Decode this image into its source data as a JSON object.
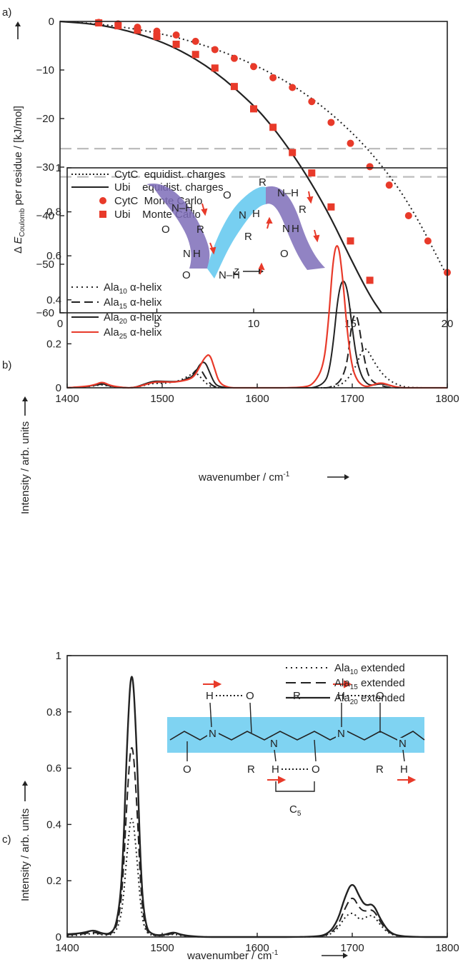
{
  "panels": [
    {
      "letter": "a)",
      "xlabel": "z",
      "ylabel_prefix": "Δ ",
      "ylabel_main": "E",
      "ylabel_sub": "Coulomb",
      "ylabel_suffix": " per residue / [kJ/mol]",
      "legend": [
        {
          "label": "CytC  equidist. charges",
          "style": "dotted",
          "marker": "none"
        },
        {
          "label": "Ubi    equidist. charges",
          "style": "solid",
          "marker": "none"
        },
        {
          "label": "CytC  Monte Carlo",
          "style": "none",
          "marker": "circle"
        },
        {
          "label": "Ubi    Monte Carlo",
          "style": "none",
          "marker": "square"
        }
      ]
    },
    {
      "letter": "b)",
      "xlabel": "wavenumber / cm",
      "xlabel_sup": "-1",
      "ylabel": "Intensity / arb. units",
      "legend": [
        {
          "name": "Ala",
          "sub": "10",
          "rest": " α-helix",
          "style": "dotted",
          "color": "#222222"
        },
        {
          "name": "Ala",
          "sub": "15",
          "rest": " α-helix",
          "style": "dashed",
          "color": "#222222"
        },
        {
          "name": "Ala",
          "sub": "20",
          "rest": " α-helix",
          "style": "solid",
          "color": "#222222"
        },
        {
          "name": "Ala",
          "sub": "25",
          "rest": " α-helix",
          "style": "solid",
          "color": "#e83a2a"
        }
      ],
      "inset_labels": {
        "nh": "N–H",
        "o": "O",
        "r": "R",
        "n": "N",
        "h": "H"
      }
    },
    {
      "letter": "c)",
      "xlabel": "wavenumber / cm",
      "xlabel_sup": "-1",
      "ylabel": "Intensity / arb. units",
      "legend": [
        {
          "name": "Ala",
          "sub": "10",
          "rest": " extended",
          "style": "dotted"
        },
        {
          "name": "Ala",
          "sub": "15",
          "rest": " extended",
          "style": "dashed"
        },
        {
          "name": "Ala",
          "sub": "20",
          "rest": " extended",
          "style": "solid"
        }
      ],
      "inset_labels": {
        "h": "H",
        "o": "O",
        "n": "N",
        "r": "R",
        "c5": "C",
        "c5_sub": "5"
      }
    }
  ],
  "colors": {
    "red": "#e83a2a",
    "black": "#222222",
    "gray": "#bdbdbd",
    "blue_band": "#7fd3f2",
    "helix_purple": "#7e6db8"
  },
  "chart_data": [
    {
      "type": "scatter",
      "title": "",
      "xlabel": "z",
      "ylabel": "Δ E_Coulomb per residue / [kJ/mol]",
      "xlim": [
        0,
        20
      ],
      "ylim": [
        -60,
        0
      ],
      "xticks": [
        0,
        5,
        10,
        15,
        20
      ],
      "yticks": [
        0,
        -10,
        -20,
        -30,
        -40,
        -50,
        -60
      ],
      "reference_lines_y": [
        -26.2,
        -32
      ],
      "series": [
        {
          "name": "CytC  equidist. charges",
          "kind": "line",
          "style": "dotted",
          "color": "#222222",
          "x": [
            0,
            2,
            4,
            6,
            8,
            10,
            12,
            14,
            16,
            18,
            20
          ],
          "y": [
            0,
            -0.5,
            -1.6,
            -3.2,
            -5.6,
            -8.8,
            -13.0,
            -18.8,
            -26.5,
            -37.0,
            -52.5
          ]
        },
        {
          "name": "Ubi    equidist. charges",
          "kind": "line",
          "style": "solid",
          "color": "#222222",
          "x": [
            0,
            2,
            4,
            6,
            8,
            10,
            11,
            12,
            13,
            14,
            15,
            16,
            16.6
          ],
          "y": [
            0,
            -0.6,
            -2.4,
            -5.4,
            -10.2,
            -17.2,
            -21.8,
            -27.2,
            -33.4,
            -40.5,
            -48.8,
            -56.5,
            -60
          ]
        },
        {
          "name": "CytC  Monte Carlo",
          "kind": "points",
          "marker": "circle",
          "color": "#e83a2a",
          "x": [
            2,
            3,
            4,
            5,
            6,
            7,
            8,
            9,
            10,
            11,
            12,
            13,
            14,
            15,
            16,
            17,
            18,
            19,
            20
          ],
          "y": [
            -0.2,
            -0.5,
            -1.2,
            -2.0,
            -2.8,
            -4.1,
            -5.8,
            -7.6,
            -9.3,
            -11.6,
            -13.6,
            -16.5,
            -20.8,
            -25.1,
            -29.9,
            -33.7,
            -40.0,
            -45.2,
            -51.7
          ]
        },
        {
          "name": "Ubi    Monte Carlo",
          "kind": "points",
          "marker": "square",
          "color": "#e83a2a",
          "x": [
            2,
            3,
            4,
            5,
            6,
            7,
            8,
            9,
            10,
            11,
            12,
            13,
            14,
            15,
            16
          ],
          "y": [
            -0.3,
            -0.9,
            -1.8,
            -3.1,
            -4.7,
            -6.8,
            -9.6,
            -13.4,
            -18.0,
            -21.8,
            -27.0,
            -31.2,
            -38.2,
            -45.2,
            -53.3
          ]
        }
      ]
    },
    {
      "type": "line",
      "title": "",
      "xlabel": "wavenumber / cm-1",
      "ylabel": "Intensity / arb. units",
      "xlim": [
        1400,
        1800
      ],
      "ylim": [
        0,
        1
      ],
      "xticks": [
        1400,
        1500,
        1600,
        1700,
        1800
      ],
      "yticks": [
        0,
        0.2,
        0.4,
        0.6,
        0.8,
        1
      ],
      "x": [
        1400,
        1420,
        1430,
        1437,
        1445,
        1460,
        1470,
        1480,
        1490,
        1500,
        1510,
        1520,
        1530,
        1535,
        1540,
        1545,
        1550,
        1555,
        1560,
        1570,
        1580,
        1600,
        1650,
        1660,
        1670,
        1675,
        1680,
        1685,
        1690,
        1695,
        1700,
        1705,
        1710,
        1715,
        1720,
        1730,
        1740,
        1750,
        1760,
        1800
      ],
      "series": [
        {
          "name": "Ala10 α-helix",
          "style": "dotted",
          "color": "#222222",
          "values": [
            0,
            0.005,
            0.01,
            0.015,
            0.006,
            0,
            0,
            0.01,
            0.02,
            0.02,
            0.025,
            0.035,
            0.06,
            0.07,
            0.05,
            0.025,
            0.008,
            0.002,
            0,
            0,
            0,
            0,
            0,
            0,
            0,
            0,
            0.005,
            0.01,
            0.02,
            0.04,
            0.07,
            0.11,
            0.17,
            0.18,
            0.14,
            0.07,
            0.03,
            0.01,
            0,
            0
          ]
        },
        {
          "name": "Ala15 α-helix",
          "style": "dashed",
          "color": "#222222",
          "values": [
            0,
            0.005,
            0.012,
            0.018,
            0.008,
            0,
            0,
            0.012,
            0.025,
            0.025,
            0.025,
            0.03,
            0.05,
            0.08,
            0.09,
            0.05,
            0.02,
            0.005,
            0,
            0,
            0,
            0,
            0,
            0,
            0,
            0,
            0.01,
            0.02,
            0.05,
            0.12,
            0.32,
            0.34,
            0.2,
            0.08,
            0.03,
            0.01,
            0,
            0,
            0,
            0
          ]
        },
        {
          "name": "Ala20 α-helix",
          "style": "solid",
          "color": "#222222",
          "values": [
            0,
            0.005,
            0.013,
            0.02,
            0.008,
            0,
            0,
            0.015,
            0.03,
            0.03,
            0.028,
            0.03,
            0.045,
            0.07,
            0.11,
            0.12,
            0.07,
            0.02,
            0.005,
            0,
            0,
            0,
            0,
            0,
            0.02,
            0.06,
            0.2,
            0.42,
            0.5,
            0.45,
            0.27,
            0.12,
            0.05,
            0.02,
            0.01,
            0.02,
            0.01,
            0,
            0,
            0
          ]
        },
        {
          "name": "Ala25 α-helix",
          "style": "solid",
          "color": "#e83a2a",
          "values": [
            0,
            0.006,
            0.015,
            0.028,
            0.01,
            0,
            0,
            0.012,
            0.025,
            0.028,
            0.025,
            0.03,
            0.04,
            0.06,
            0.1,
            0.14,
            0.155,
            0.09,
            0.02,
            0,
            0,
            0,
            0,
            0.02,
            0.1,
            0.3,
            0.6,
            0.67,
            0.5,
            0.24,
            0.09,
            0.035,
            0.012,
            0.005,
            0.01,
            0.025,
            0.01,
            0,
            0,
            0
          ]
        }
      ]
    },
    {
      "type": "line",
      "title": "",
      "xlabel": "wavenumber / cm-1",
      "ylabel": "Intensity / arb. units",
      "xlim": [
        1400,
        1800
      ],
      "ylim": [
        0,
        1
      ],
      "xticks": [
        1400,
        1500,
        1600,
        1700,
        1800
      ],
      "yticks": [
        0,
        0.2,
        0.4,
        0.6,
        0.8,
        1
      ],
      "x": [
        1400,
        1410,
        1420,
        1428,
        1436,
        1445,
        1452,
        1458,
        1463,
        1468,
        1473,
        1478,
        1483,
        1490,
        1500,
        1507,
        1513,
        1520,
        1530,
        1545,
        1560,
        1600,
        1660,
        1675,
        1685,
        1692,
        1700,
        1708,
        1714,
        1722,
        1730,
        1740,
        1755,
        1800
      ],
      "series": [
        {
          "name": "Ala10 extended",
          "style": "dotted",
          "values": [
            0.005,
            0.006,
            0.01,
            0.013,
            0.008,
            0.006,
            0.02,
            0.09,
            0.3,
            0.46,
            0.3,
            0.08,
            0.015,
            0.005,
            0.004,
            0.008,
            0.01,
            0.005,
            0.002,
            0,
            0,
            0,
            0,
            0.005,
            0.03,
            0.07,
            0.09,
            0.06,
            0.07,
            0.08,
            0.04,
            0.008,
            0,
            0
          ]
        },
        {
          "name": "Ala15 extended",
          "style": "dashed",
          "values": [
            0.008,
            0.009,
            0.013,
            0.018,
            0.01,
            0.008,
            0.03,
            0.15,
            0.5,
            0.73,
            0.5,
            0.13,
            0.02,
            0.006,
            0.005,
            0.01,
            0.013,
            0.007,
            0.002,
            0,
            0,
            0,
            0,
            0.007,
            0.04,
            0.1,
            0.15,
            0.1,
            0.09,
            0.1,
            0.05,
            0.01,
            0,
            0
          ]
        },
        {
          "name": "Ala20 extended",
          "style": "solid",
          "values": [
            0.01,
            0.012,
            0.017,
            0.025,
            0.013,
            0.01,
            0.04,
            0.2,
            0.7,
            1.0,
            0.7,
            0.18,
            0.03,
            0.008,
            0.006,
            0.013,
            0.017,
            0.008,
            0.003,
            0,
            0,
            0,
            0,
            0.01,
            0.06,
            0.14,
            0.2,
            0.14,
            0.11,
            0.12,
            0.06,
            0.012,
            0,
            0
          ]
        }
      ]
    }
  ]
}
